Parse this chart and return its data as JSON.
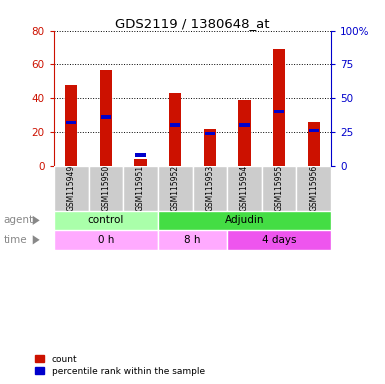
{
  "title": "GDS2119 / 1380648_at",
  "samples": [
    "GSM115949",
    "GSM115950",
    "GSM115951",
    "GSM115952",
    "GSM115953",
    "GSM115954",
    "GSM115955",
    "GSM115956"
  ],
  "count_values": [
    48,
    57,
    4,
    43,
    22,
    39,
    69,
    26
  ],
  "percentile_values": [
    32,
    36,
    8,
    30,
    24,
    30,
    40,
    26
  ],
  "left_ylim": [
    0,
    80
  ],
  "right_ylim": [
    0,
    100
  ],
  "left_yticks": [
    0,
    20,
    40,
    60,
    80
  ],
  "right_yticks": [
    0,
    25,
    50,
    75,
    100
  ],
  "right_yticklabels": [
    "0",
    "25",
    "50",
    "75",
    "100%"
  ],
  "count_color": "#cc1100",
  "percentile_color": "#0000cc",
  "bar_width": 0.35,
  "agent_groups": [
    {
      "label": "control",
      "span": [
        0,
        3
      ],
      "color": "#aaffaa"
    },
    {
      "label": "Adjudin",
      "span": [
        3,
        8
      ],
      "color": "#44dd44"
    }
  ],
  "time_groups": [
    {
      "label": "0 h",
      "span": [
        0,
        3
      ],
      "color": "#ffaaff"
    },
    {
      "label": "8 h",
      "span": [
        3,
        5
      ],
      "color": "#ffaaff"
    },
    {
      "label": "4 days",
      "span": [
        5,
        8
      ],
      "color": "#ee55ee"
    }
  ],
  "legend_count_label": "count",
  "legend_percentile_label": "percentile rank within the sample",
  "bg_color": "#ffffff",
  "sample_bg_color": "#cccccc"
}
